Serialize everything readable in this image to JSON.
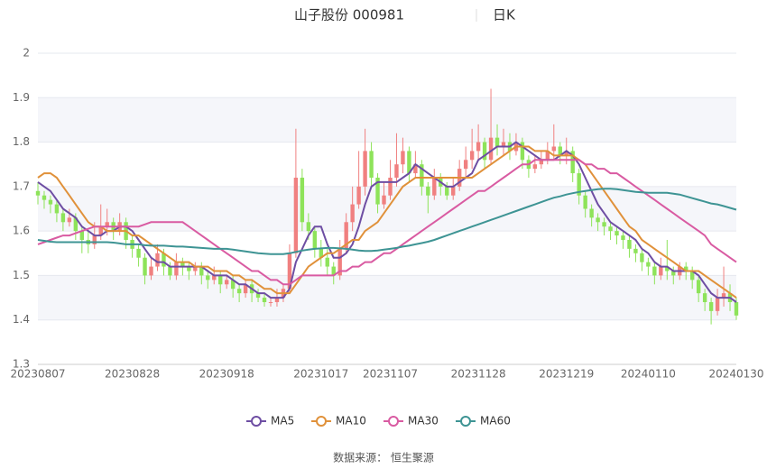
{
  "chart_data": {
    "type": "candlestick",
    "title": "山子股份 000981",
    "subtitle": "日K",
    "source": "数据来源： 恒生聚源",
    "ylim": [
      1.3,
      2.0
    ],
    "yticks": [
      1.3,
      1.4,
      1.5,
      1.6,
      1.7,
      1.8,
      1.9,
      2
    ],
    "grid": true,
    "up_color": "#f08080",
    "down_color": "#8ee35a",
    "legend": "bottom",
    "categories": [
      "20230807",
      null,
      null,
      null,
      null,
      null,
      null,
      null,
      null,
      null,
      null,
      null,
      null,
      null,
      null,
      "20230828",
      null,
      null,
      null,
      null,
      null,
      null,
      null,
      null,
      null,
      null,
      null,
      null,
      null,
      null,
      "20230918",
      null,
      null,
      null,
      null,
      null,
      null,
      null,
      null,
      null,
      null,
      null,
      null,
      null,
      null,
      "20231017",
      null,
      null,
      null,
      null,
      null,
      null,
      null,
      null,
      null,
      null,
      "20231107",
      null,
      null,
      null,
      null,
      null,
      null,
      null,
      null,
      null,
      null,
      null,
      null,
      null,
      "20231128",
      null,
      null,
      null,
      null,
      null,
      null,
      null,
      null,
      null,
      null,
      null,
      null,
      null,
      "20231219",
      null,
      null,
      null,
      null,
      null,
      null,
      null,
      null,
      null,
      null,
      null,
      null,
      "20240110",
      null,
      null,
      null,
      null,
      null,
      null,
      null,
      null,
      null,
      null,
      null,
      null,
      null,
      "20240130"
    ],
    "candles": [
      [
        1.69,
        1.68,
        1.66,
        1.71
      ],
      [
        1.68,
        1.67,
        1.65,
        1.69
      ],
      [
        1.67,
        1.66,
        1.64,
        1.68
      ],
      [
        1.66,
        1.64,
        1.62,
        1.67
      ],
      [
        1.64,
        1.62,
        1.6,
        1.65
      ],
      [
        1.62,
        1.63,
        1.61,
        1.65
      ],
      [
        1.63,
        1.6,
        1.58,
        1.64
      ],
      [
        1.6,
        1.58,
        1.55,
        1.61
      ],
      [
        1.58,
        1.57,
        1.55,
        1.6
      ],
      [
        1.57,
        1.59,
        1.56,
        1.62
      ],
      [
        1.59,
        1.61,
        1.58,
        1.66
      ],
      [
        1.61,
        1.62,
        1.59,
        1.65
      ],
      [
        1.62,
        1.6,
        1.58,
        1.63
      ],
      [
        1.6,
        1.62,
        1.59,
        1.64
      ],
      [
        1.62,
        1.58,
        1.56,
        1.63
      ],
      [
        1.58,
        1.56,
        1.54,
        1.59
      ],
      [
        1.56,
        1.54,
        1.52,
        1.57
      ],
      [
        1.54,
        1.5,
        1.48,
        1.55
      ],
      [
        1.5,
        1.52,
        1.49,
        1.54
      ],
      [
        1.52,
        1.55,
        1.51,
        1.57
      ],
      [
        1.55,
        1.52,
        1.5,
        1.56
      ],
      [
        1.52,
        1.5,
        1.49,
        1.53
      ],
      [
        1.5,
        1.53,
        1.49,
        1.55
      ],
      [
        1.53,
        1.52,
        1.5,
        1.54
      ],
      [
        1.52,
        1.51,
        1.49,
        1.53
      ],
      [
        1.51,
        1.52,
        1.5,
        1.53
      ],
      [
        1.52,
        1.5,
        1.48,
        1.53
      ],
      [
        1.5,
        1.49,
        1.47,
        1.51
      ],
      [
        1.49,
        1.5,
        1.48,
        1.52
      ],
      [
        1.5,
        1.48,
        1.46,
        1.51
      ],
      [
        1.48,
        1.49,
        1.47,
        1.5
      ],
      [
        1.49,
        1.47,
        1.45,
        1.5
      ],
      [
        1.47,
        1.46,
        1.44,
        1.48
      ],
      [
        1.46,
        1.48,
        1.45,
        1.49
      ],
      [
        1.48,
        1.46,
        1.44,
        1.49
      ],
      [
        1.46,
        1.45,
        1.44,
        1.47
      ],
      [
        1.45,
        1.44,
        1.43,
        1.46
      ],
      [
        1.44,
        1.44,
        1.43,
        1.45
      ],
      [
        1.44,
        1.45,
        1.43,
        1.47
      ],
      [
        1.45,
        1.47,
        1.44,
        1.48
      ],
      [
        1.47,
        1.55,
        1.46,
        1.57
      ],
      [
        1.55,
        1.72,
        1.54,
        1.83
      ],
      [
        1.72,
        1.62,
        1.6,
        1.74
      ],
      [
        1.62,
        1.6,
        1.58,
        1.64
      ],
      [
        1.6,
        1.56,
        1.54,
        1.61
      ],
      [
        1.56,
        1.54,
        1.52,
        1.58
      ],
      [
        1.54,
        1.52,
        1.5,
        1.56
      ],
      [
        1.52,
        1.5,
        1.48,
        1.53
      ],
      [
        1.5,
        1.56,
        1.49,
        1.58
      ],
      [
        1.56,
        1.62,
        1.55,
        1.64
      ],
      [
        1.62,
        1.66,
        1.6,
        1.7
      ],
      [
        1.66,
        1.7,
        1.65,
        1.78
      ],
      [
        1.7,
        1.78,
        1.68,
        1.83
      ],
      [
        1.78,
        1.72,
        1.7,
        1.8
      ],
      [
        1.72,
        1.66,
        1.64,
        1.73
      ],
      [
        1.66,
        1.68,
        1.65,
        1.71
      ],
      [
        1.68,
        1.72,
        1.67,
        1.76
      ],
      [
        1.72,
        1.75,
        1.7,
        1.82
      ],
      [
        1.75,
        1.78,
        1.73,
        1.81
      ],
      [
        1.78,
        1.73,
        1.71,
        1.79
      ],
      [
        1.73,
        1.75,
        1.72,
        1.78
      ],
      [
        1.75,
        1.7,
        1.68,
        1.76
      ],
      [
        1.7,
        1.68,
        1.64,
        1.71
      ],
      [
        1.68,
        1.72,
        1.67,
        1.74
      ],
      [
        1.72,
        1.7,
        1.68,
        1.73
      ],
      [
        1.7,
        1.68,
        1.67,
        1.71
      ],
      [
        1.68,
        1.7,
        1.67,
        1.72
      ],
      [
        1.7,
        1.74,
        1.69,
        1.76
      ],
      [
        1.74,
        1.76,
        1.72,
        1.79
      ],
      [
        1.76,
        1.78,
        1.74,
        1.83
      ],
      [
        1.78,
        1.8,
        1.76,
        1.84
      ],
      [
        1.8,
        1.76,
        1.74,
        1.81
      ],
      [
        1.76,
        1.81,
        1.75,
        1.92
      ],
      [
        1.81,
        1.79,
        1.77,
        1.84
      ],
      [
        1.79,
        1.8,
        1.77,
        1.83
      ],
      [
        1.8,
        1.78,
        1.76,
        1.82
      ],
      [
        1.78,
        1.8,
        1.77,
        1.82
      ],
      [
        1.8,
        1.76,
        1.74,
        1.81
      ],
      [
        1.76,
        1.74,
        1.72,
        1.77
      ],
      [
        1.74,
        1.75,
        1.73,
        1.77
      ],
      [
        1.75,
        1.76,
        1.74,
        1.78
      ],
      [
        1.76,
        1.78,
        1.75,
        1.8
      ],
      [
        1.78,
        1.79,
        1.76,
        1.84
      ],
      [
        1.79,
        1.77,
        1.75,
        1.8
      ],
      [
        1.77,
        1.78,
        1.75,
        1.81
      ],
      [
        1.78,
        1.73,
        1.71,
        1.79
      ],
      [
        1.73,
        1.68,
        1.66,
        1.74
      ],
      [
        1.68,
        1.65,
        1.63,
        1.69
      ],
      [
        1.65,
        1.63,
        1.61,
        1.66
      ],
      [
        1.63,
        1.62,
        1.6,
        1.64
      ],
      [
        1.62,
        1.61,
        1.59,
        1.63
      ],
      [
        1.61,
        1.6,
        1.58,
        1.62
      ],
      [
        1.6,
        1.59,
        1.57,
        1.61
      ],
      [
        1.59,
        1.58,
        1.56,
        1.6
      ],
      [
        1.58,
        1.56,
        1.54,
        1.59
      ],
      [
        1.56,
        1.55,
        1.53,
        1.57
      ],
      [
        1.55,
        1.53,
        1.51,
        1.56
      ],
      [
        1.53,
        1.52,
        1.5,
        1.54
      ],
      [
        1.52,
        1.5,
        1.48,
        1.53
      ],
      [
        1.5,
        1.52,
        1.49,
        1.54
      ],
      [
        1.52,
        1.51,
        1.49,
        1.58
      ],
      [
        1.51,
        1.5,
        1.48,
        1.52
      ],
      [
        1.5,
        1.52,
        1.49,
        1.53
      ],
      [
        1.52,
        1.51,
        1.49,
        1.53
      ],
      [
        1.51,
        1.49,
        1.47,
        1.52
      ],
      [
        1.49,
        1.46,
        1.44,
        1.5
      ],
      [
        1.46,
        1.44,
        1.42,
        1.47
      ],
      [
        1.44,
        1.42,
        1.39,
        1.45
      ],
      [
        1.42,
        1.45,
        1.41,
        1.47
      ],
      [
        1.45,
        1.46,
        1.43,
        1.52
      ],
      [
        1.46,
        1.44,
        1.42,
        1.48
      ],
      [
        1.44,
        1.41,
        1.4,
        1.45
      ]
    ],
    "series": [
      {
        "name": "MA5",
        "color": "#6e4ea3",
        "values": [
          1.71,
          1.7,
          1.69,
          1.67,
          1.65,
          1.64,
          1.63,
          1.61,
          1.6,
          1.59,
          1.59,
          1.6,
          1.6,
          1.61,
          1.61,
          1.6,
          1.58,
          1.56,
          1.54,
          1.53,
          1.53,
          1.52,
          1.52,
          1.52,
          1.52,
          1.52,
          1.52,
          1.51,
          1.5,
          1.5,
          1.5,
          1.49,
          1.48,
          1.48,
          1.47,
          1.46,
          1.46,
          1.45,
          1.45,
          1.45,
          1.47,
          1.53,
          1.56,
          1.59,
          1.61,
          1.61,
          1.57,
          1.54,
          1.54,
          1.55,
          1.57,
          1.61,
          1.66,
          1.7,
          1.71,
          1.71,
          1.71,
          1.71,
          1.72,
          1.73,
          1.75,
          1.74,
          1.73,
          1.72,
          1.71,
          1.7,
          1.7,
          1.71,
          1.72,
          1.73,
          1.76,
          1.77,
          1.78,
          1.79,
          1.79,
          1.79,
          1.8,
          1.79,
          1.78,
          1.77,
          1.76,
          1.76,
          1.76,
          1.77,
          1.78,
          1.77,
          1.75,
          1.72,
          1.69,
          1.66,
          1.64,
          1.62,
          1.61,
          1.6,
          1.59,
          1.58,
          1.56,
          1.55,
          1.53,
          1.52,
          1.52,
          1.51,
          1.51,
          1.51,
          1.51,
          1.5,
          1.48,
          1.46,
          1.45,
          1.45,
          1.45,
          1.44
        ]
      },
      {
        "name": "MA10",
        "color": "#e0913a",
        "values": [
          1.72,
          1.73,
          1.73,
          1.72,
          1.7,
          1.68,
          1.66,
          1.64,
          1.62,
          1.61,
          1.61,
          1.6,
          1.6,
          1.6,
          1.6,
          1.59,
          1.59,
          1.58,
          1.57,
          1.56,
          1.55,
          1.54,
          1.53,
          1.53,
          1.53,
          1.52,
          1.52,
          1.52,
          1.51,
          1.51,
          1.51,
          1.5,
          1.5,
          1.49,
          1.49,
          1.48,
          1.47,
          1.47,
          1.46,
          1.46,
          1.46,
          1.48,
          1.5,
          1.52,
          1.53,
          1.54,
          1.55,
          1.55,
          1.56,
          1.57,
          1.58,
          1.58,
          1.6,
          1.61,
          1.62,
          1.64,
          1.66,
          1.68,
          1.7,
          1.71,
          1.72,
          1.72,
          1.72,
          1.72,
          1.72,
          1.72,
          1.72,
          1.72,
          1.72,
          1.72,
          1.73,
          1.74,
          1.75,
          1.76,
          1.77,
          1.78,
          1.79,
          1.79,
          1.79,
          1.78,
          1.78,
          1.78,
          1.77,
          1.77,
          1.77,
          1.77,
          1.76,
          1.75,
          1.73,
          1.71,
          1.69,
          1.67,
          1.65,
          1.63,
          1.61,
          1.6,
          1.58,
          1.57,
          1.56,
          1.55,
          1.54,
          1.53,
          1.52,
          1.51,
          1.51,
          1.51,
          1.5,
          1.49,
          1.48,
          1.47,
          1.46,
          1.45
        ]
      },
      {
        "name": "MA30",
        "color": "#d95ba2",
        "values": [
          1.57,
          1.575,
          1.58,
          1.585,
          1.59,
          1.59,
          1.595,
          1.6,
          1.605,
          1.61,
          1.61,
          1.61,
          1.61,
          1.61,
          1.61,
          1.61,
          1.61,
          1.615,
          1.62,
          1.62,
          1.62,
          1.62,
          1.62,
          1.62,
          1.61,
          1.6,
          1.59,
          1.58,
          1.57,
          1.56,
          1.55,
          1.54,
          1.53,
          1.52,
          1.51,
          1.51,
          1.5,
          1.49,
          1.49,
          1.48,
          1.48,
          1.49,
          1.5,
          1.5,
          1.5,
          1.5,
          1.5,
          1.5,
          1.51,
          1.51,
          1.52,
          1.52,
          1.53,
          1.53,
          1.54,
          1.55,
          1.55,
          1.56,
          1.57,
          1.58,
          1.59,
          1.6,
          1.61,
          1.62,
          1.63,
          1.64,
          1.65,
          1.66,
          1.67,
          1.68,
          1.69,
          1.69,
          1.7,
          1.71,
          1.72,
          1.73,
          1.74,
          1.75,
          1.75,
          1.76,
          1.76,
          1.76,
          1.76,
          1.76,
          1.76,
          1.76,
          1.76,
          1.75,
          1.75,
          1.74,
          1.74,
          1.73,
          1.73,
          1.72,
          1.71,
          1.7,
          1.69,
          1.68,
          1.67,
          1.66,
          1.65,
          1.64,
          1.63,
          1.62,
          1.61,
          1.6,
          1.59,
          1.57,
          1.56,
          1.55,
          1.54,
          1.53
        ]
      },
      {
        "name": "MA60",
        "color": "#3e9494",
        "values": [
          1.58,
          1.578,
          1.576,
          1.575,
          1.575,
          1.575,
          1.575,
          1.575,
          1.575,
          1.575,
          1.575,
          1.575,
          1.574,
          1.572,
          1.57,
          1.57,
          1.57,
          1.568,
          1.567,
          1.567,
          1.567,
          1.566,
          1.565,
          1.565,
          1.564,
          1.563,
          1.562,
          1.561,
          1.56,
          1.56,
          1.56,
          1.558,
          1.556,
          1.554,
          1.552,
          1.55,
          1.549,
          1.548,
          1.548,
          1.548,
          1.55,
          1.553,
          1.556,
          1.558,
          1.56,
          1.561,
          1.562,
          1.562,
          1.561,
          1.56,
          1.558,
          1.556,
          1.555,
          1.555,
          1.556,
          1.558,
          1.56,
          1.562,
          1.565,
          1.567,
          1.57,
          1.573,
          1.576,
          1.58,
          1.585,
          1.59,
          1.595,
          1.6,
          1.605,
          1.61,
          1.615,
          1.62,
          1.625,
          1.63,
          1.635,
          1.64,
          1.645,
          1.65,
          1.655,
          1.66,
          1.665,
          1.67,
          1.675,
          1.678,
          1.682,
          1.685,
          1.688,
          1.69,
          1.692,
          1.694,
          1.695,
          1.695,
          1.694,
          1.692,
          1.69,
          1.688,
          1.687,
          1.686,
          1.686,
          1.686,
          1.686,
          1.684,
          1.682,
          1.678,
          1.674,
          1.67,
          1.666,
          1.662,
          1.66,
          1.656,
          1.652,
          1.648
        ]
      }
    ]
  }
}
